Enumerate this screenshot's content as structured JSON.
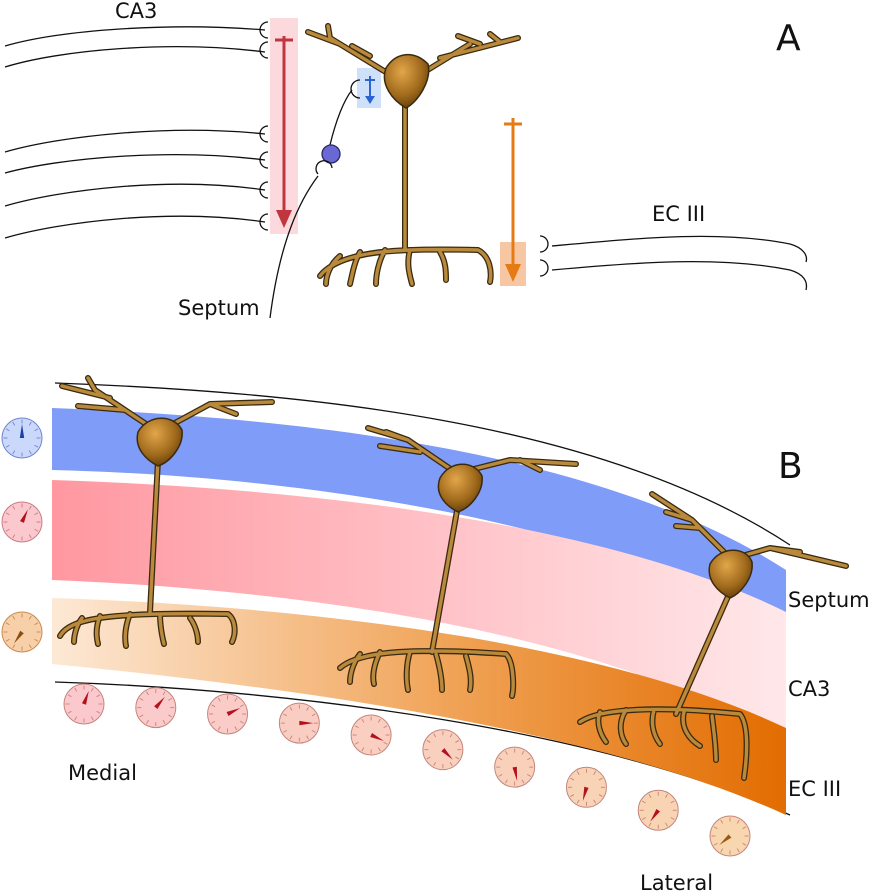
{
  "panel_a": {
    "letter": "A",
    "labels": {
      "ca3": "CA3",
      "ec3": "EC III",
      "septum": "Septum"
    }
  },
  "panel_b": {
    "letter": "B",
    "layer_labels": {
      "septum": "Septum",
      "ca3": "CA3",
      "ec3": "EC III"
    },
    "axis_labels": {
      "medial": "Medial",
      "lateral": "Lateral"
    },
    "layer_phases_deg": {
      "septum": 0,
      "ca3": 25,
      "ec3": 215
    },
    "gradient_phases_deg": [
      20,
      40,
      65,
      90,
      115,
      135,
      170,
      195,
      215,
      230
    ]
  },
  "colors": {
    "septum": "#7e9cf8",
    "ca3": "#ff9aa2",
    "ec3": "#e8720a",
    "ca3_arrow": "#c0353e",
    "ec3_arrow": "#e67a15",
    "septum_arrow": "#2a64d4",
    "soma": "#9a6418"
  }
}
